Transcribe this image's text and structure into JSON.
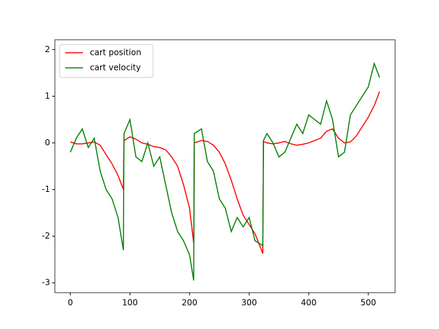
{
  "chart_data": {
    "type": "line",
    "x": [
      0,
      10,
      20,
      30,
      40,
      50,
      60,
      70,
      80,
      89,
      90,
      100,
      110,
      120,
      130,
      140,
      150,
      160,
      170,
      180,
      190,
      200,
      207,
      208,
      220,
      230,
      240,
      250,
      260,
      270,
      280,
      290,
      300,
      310,
      323,
      324,
      330,
      340,
      350,
      360,
      370,
      380,
      390,
      400,
      410,
      420,
      430,
      440,
      450,
      460,
      470,
      480,
      490,
      500,
      510,
      519
    ],
    "series": [
      {
        "name": "cart position",
        "color": "#ff0000",
        "values": [
          0.02,
          -0.02,
          -0.02,
          0.0,
          0.02,
          -0.05,
          -0.25,
          -0.45,
          -0.7,
          -1.0,
          0.05,
          0.13,
          0.08,
          0.0,
          -0.03,
          -0.08,
          -0.1,
          -0.15,
          -0.3,
          -0.5,
          -0.9,
          -1.4,
          -2.15,
          0.0,
          0.05,
          0.03,
          -0.05,
          -0.2,
          -0.45,
          -0.8,
          -1.2,
          -1.55,
          -1.75,
          -1.95,
          -2.37,
          0.03,
          0.0,
          -0.02,
          0.0,
          0.03,
          -0.02,
          -0.05,
          -0.03,
          0.0,
          0.05,
          0.1,
          0.25,
          0.3,
          0.1,
          0.0,
          0.02,
          0.15,
          0.35,
          0.55,
          0.8,
          1.1
        ]
      },
      {
        "name": "cart velocity",
        "color": "#008000",
        "values": [
          -0.2,
          0.1,
          0.3,
          -0.1,
          0.1,
          -0.6,
          -1.0,
          -1.2,
          -1.6,
          -2.3,
          0.2,
          0.5,
          -0.3,
          -0.4,
          0.0,
          -0.5,
          -0.3,
          -0.9,
          -1.5,
          -1.9,
          -2.1,
          -2.4,
          -2.95,
          0.2,
          0.3,
          -0.4,
          -0.6,
          -1.2,
          -1.4,
          -1.9,
          -1.6,
          -1.8,
          -1.6,
          -2.1,
          -2.2,
          0.05,
          0.2,
          0.0,
          -0.3,
          -0.2,
          0.1,
          0.4,
          0.2,
          0.6,
          0.5,
          0.4,
          0.9,
          0.5,
          -0.3,
          -0.2,
          0.6,
          0.8,
          1.0,
          1.2,
          1.7,
          1.4
        ]
      }
    ],
    "xlim": [
      -26,
      545
    ],
    "ylim": [
      -3.21,
      2.21
    ],
    "xticks": [
      0,
      100,
      200,
      300,
      400,
      500
    ],
    "yticks": [
      -3,
      -2,
      -1,
      0,
      1,
      2
    ],
    "legend": "upper left"
  }
}
